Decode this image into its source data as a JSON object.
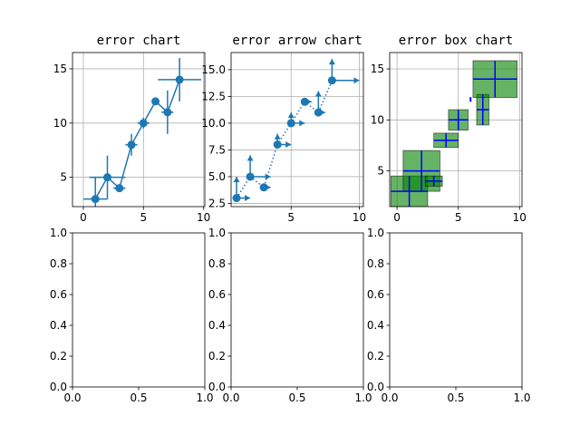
{
  "figure": {
    "background": "#ffffff"
  },
  "chart_data": [
    {
      "type": "line",
      "title": "error chart",
      "xlim": [
        -0.9,
        10.1
      ],
      "ylim": [
        2.3,
        16.5
      ],
      "xticks": [
        0,
        5,
        10
      ],
      "yticks": [
        5,
        10,
        15
      ],
      "grid": true,
      "color": "#1f77b4",
      "points": [
        {
          "x": 1,
          "y": 3,
          "xerr": 1.0,
          "yerr": 2.0
        },
        {
          "x": 2,
          "y": 5,
          "xerr": 1.5,
          "yerr": 2.0
        },
        {
          "x": 3,
          "y": 4,
          "xerr": 0.5,
          "yerr": 0.2
        },
        {
          "x": 4,
          "y": 8,
          "xerr": 0.5,
          "yerr": 1.0
        },
        {
          "x": 5,
          "y": 10,
          "xerr": 0.5,
          "yerr": 0.5
        },
        {
          "x": 6,
          "y": 12,
          "xerr": 0.3,
          "yerr": 0.3
        },
        {
          "x": 7,
          "y": 11,
          "xerr": 0.5,
          "yerr": 2.0
        },
        {
          "x": 8,
          "y": 14,
          "xerr": 1.8,
          "yerr": 2.0
        }
      ]
    },
    {
      "type": "scatter",
      "title": "error arrow chart",
      "xlim": [
        0.6,
        10.3
      ],
      "ylim": [
        2.2,
        16.6
      ],
      "xticks": [
        5,
        10
      ],
      "yticks": [
        "2.5",
        "5.0",
        "7.5",
        "10.0",
        "12.5",
        "15.0"
      ],
      "grid": true,
      "color": "#1f77b4",
      "line_style": "dotted",
      "points": [
        {
          "x": 1,
          "y": 3,
          "xerr": 1.0,
          "yerr": 2.0
        },
        {
          "x": 2,
          "y": 5,
          "xerr": 1.5,
          "yerr": 2.0
        },
        {
          "x": 3,
          "y": 4,
          "xerr": 0.5,
          "yerr": 0.2
        },
        {
          "x": 4,
          "y": 8,
          "xerr": 1.0,
          "yerr": 1.0
        },
        {
          "x": 5,
          "y": 10,
          "xerr": 1.0,
          "yerr": 1.0
        },
        {
          "x": 6,
          "y": 12,
          "xerr": 0.5,
          "yerr": 0.3
        },
        {
          "x": 7,
          "y": 11,
          "xerr": 0.5,
          "yerr": 2.0
        },
        {
          "x": 8,
          "y": 14,
          "xerr": 2.0,
          "yerr": 2.0
        }
      ]
    },
    {
      "type": "bar",
      "title": "error box chart",
      "xlim": [
        -0.6,
        10.2
      ],
      "ylim": [
        1.5,
        16.6
      ],
      "xticks": [
        0,
        5,
        10
      ],
      "yticks": [
        5,
        10,
        15
      ],
      "grid": true,
      "box_color": "#008000",
      "box_alpha": 0.6,
      "bar_color": "#0000ff",
      "points": [
        {
          "x": 1,
          "y": 3,
          "xerr": 1.5,
          "yerr": 1.5
        },
        {
          "x": 2,
          "y": 5,
          "xerr": 1.5,
          "yerr": 2.0
        },
        {
          "x": 3,
          "y": 4,
          "xerr": 0.7,
          "yerr": 0.5
        },
        {
          "x": 4,
          "y": 8,
          "xerr": 1.0,
          "yerr": 0.7
        },
        {
          "x": 5,
          "y": 10,
          "xerr": 0.8,
          "yerr": 1.0
        },
        {
          "x": 6,
          "y": 12,
          "xerr": 0.05,
          "yerr": 0.2
        },
        {
          "x": 7,
          "y": 11,
          "xerr": 0.5,
          "yerr": 1.5
        },
        {
          "x": 8,
          "y": 14,
          "xerr": 1.8,
          "yerr": 1.8
        }
      ]
    },
    {
      "type": "line",
      "title": "",
      "xlim": [
        0.0,
        1.0
      ],
      "ylim": [
        0.0,
        1.0
      ],
      "xticks": [
        "0.0",
        "0.5",
        "1.0"
      ],
      "yticks": [
        "0.0",
        "0.2",
        "0.4",
        "0.6",
        "0.8",
        "1.0"
      ],
      "grid": false,
      "points": []
    },
    {
      "type": "line",
      "title": "",
      "xlim": [
        0.0,
        1.0
      ],
      "ylim": [
        0.0,
        1.0
      ],
      "xticks": [
        "0.0",
        "0.5",
        "1.0"
      ],
      "yticks": [
        "0.0",
        "0.2",
        "0.4",
        "0.6",
        "0.8",
        "1.0"
      ],
      "grid": false,
      "points": []
    },
    {
      "type": "line",
      "title": "",
      "xlim": [
        0.0,
        1.0
      ],
      "ylim": [
        0.0,
        1.0
      ],
      "xticks": [
        "0.0",
        "0.5",
        "1.0"
      ],
      "yticks": [
        "0.0",
        "0.2",
        "0.4",
        "0.6",
        "0.8",
        "1.0"
      ],
      "grid": false,
      "points": []
    }
  ]
}
